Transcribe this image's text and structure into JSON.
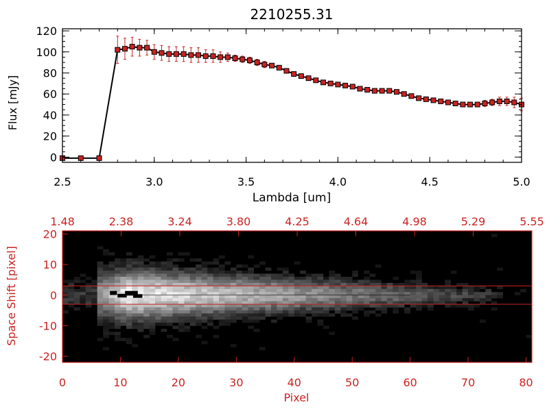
{
  "chart_data": [
    {
      "type": "line",
      "title": "2210255.31",
      "xlabel": "Lambda [um]",
      "ylabel": "Flux [mJy]",
      "xlim": [
        2.5,
        5.0
      ],
      "ylim": [
        -5,
        122
      ],
      "xticks": [
        "2.5",
        "3.0",
        "3.5",
        "4.0",
        "4.5",
        "5.0"
      ],
      "yticks": [
        "0",
        "20",
        "40",
        "60",
        "80",
        "100",
        "120"
      ],
      "series": [
        {
          "x": [
            2.5,
            2.6,
            2.7,
            2.8,
            2.84,
            2.88,
            2.92,
            2.96,
            3.0,
            3.04,
            3.08,
            3.12,
            3.16,
            3.2,
            3.24,
            3.28,
            3.32,
            3.36,
            3.4,
            3.44,
            3.48,
            3.52,
            3.56,
            3.6,
            3.64,
            3.68,
            3.72,
            3.76,
            3.8,
            3.84,
            3.88,
            3.92,
            3.96,
            4.0,
            4.04,
            4.08,
            4.12,
            4.16,
            4.2,
            4.24,
            4.28,
            4.32,
            4.36,
            4.4,
            4.44,
            4.48,
            4.52,
            4.56,
            4.6,
            4.64,
            4.68,
            4.72,
            4.76,
            4.8,
            4.84,
            4.88,
            4.92,
            4.96,
            5.0
          ],
          "y": [
            -1,
            -1,
            -1,
            102,
            103,
            105,
            104,
            104,
            100,
            99,
            98,
            98,
            98,
            97,
            97,
            96,
            96,
            95,
            95,
            94,
            93,
            92,
            90,
            88,
            87,
            85,
            82,
            79,
            77,
            75,
            73,
            71,
            70,
            69,
            68,
            67,
            65,
            64,
            63,
            63,
            63,
            62,
            60,
            58,
            56,
            55,
            54,
            53,
            52,
            51,
            50,
            50,
            50,
            51,
            52,
            53,
            53,
            52,
            50
          ],
          "yerr": [
            0,
            0,
            0,
            13,
            10,
            9,
            8,
            7,
            7,
            7,
            7,
            7,
            7,
            7,
            7,
            6,
            6,
            5,
            4,
            3,
            3,
            3,
            3,
            3,
            2,
            2,
            2,
            2,
            2,
            2,
            2,
            2,
            2,
            2,
            2,
            2,
            2,
            2,
            2,
            2,
            2,
            2,
            2,
            2,
            2,
            2,
            2,
            2,
            2,
            2,
            2,
            2,
            2,
            3,
            3,
            4,
            4,
            5,
            6
          ]
        }
      ],
      "marker_color": "#cc2222",
      "line_color": "#000000",
      "errorbar_color": "#cc2222",
      "grid": false
    },
    {
      "type": "heatmap",
      "xlabel": "Pixel",
      "ylabel": "Space Shift [pixel]",
      "xlim": [
        0,
        81
      ],
      "ylim": [
        -22,
        21
      ],
      "xticks": [
        "0",
        "10",
        "20",
        "30",
        "40",
        "50",
        "60",
        "70",
        "80"
      ],
      "yticks": [
        "-20",
        "-10",
        "0",
        "10",
        "20"
      ],
      "top_axis_ticks": [
        "1.48",
        "2.38",
        "3.24",
        "3.80",
        "4.25",
        "4.64",
        "4.98",
        "5.29",
        "5.55"
      ],
      "aperture_lines": [
        3,
        -3
      ],
      "colormap": "grayscale",
      "axis_color": "#cc2222"
    }
  ]
}
